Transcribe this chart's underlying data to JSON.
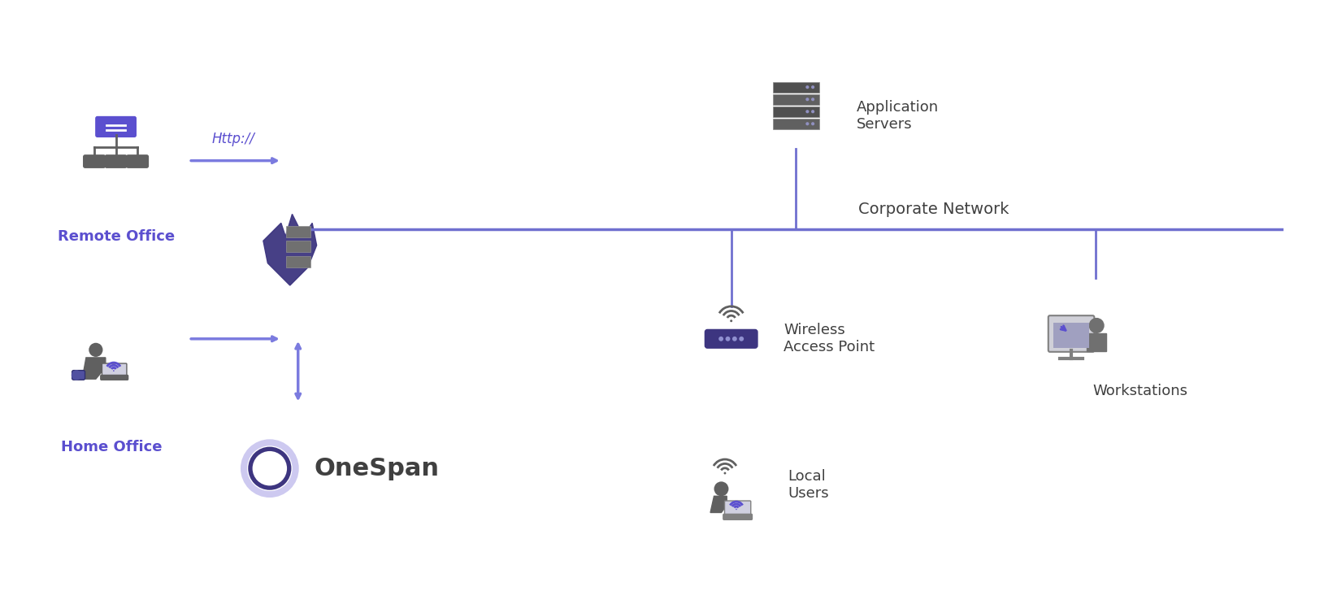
{
  "bg_color": "#ffffff",
  "purple": "#5B4FCF",
  "dark_purple": "#3D3580",
  "gray": "#606060",
  "light_purple": "#7B6FDF",
  "medium_purple": "#6B5FBF",
  "arrow_color": "#7B7BDF",
  "line_color": "#7070CF",
  "label_color": "#404040",
  "labels": {
    "remote_office": "Remote Office",
    "home_office": "Home Office",
    "http": "Http://",
    "corporate_network": "Corporate Network",
    "application_servers": "Application\nServers",
    "wireless_access_point": "Wireless\nAccess Point",
    "local_users": "Local\nUsers",
    "workstations": "Workstations",
    "onespan": "OneSpan"
  }
}
